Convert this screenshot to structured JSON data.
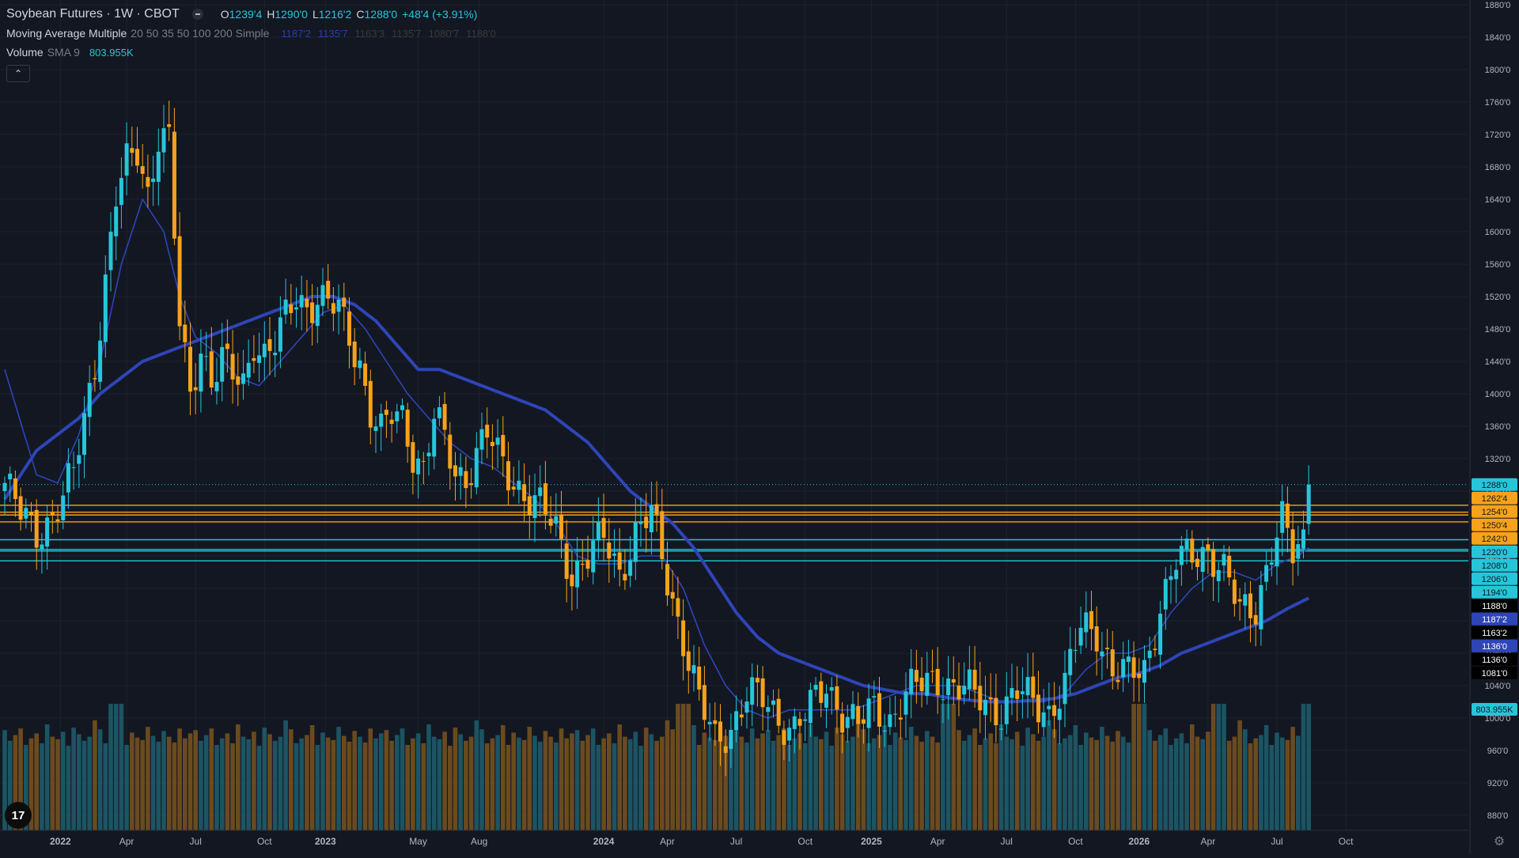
{
  "header": {
    "symbol": "Soybean Futures · 1W · CBOT",
    "ohlc": [
      {
        "k": "O",
        "v": "1239'4"
      },
      {
        "k": "H",
        "v": "1290'0"
      },
      {
        "k": "L",
        "v": "1216'2"
      },
      {
        "k": "C",
        "v": "1288'0"
      }
    ],
    "change": "+48'4 (+3.91%)"
  },
  "indicators": {
    "ma": {
      "name": "Moving Average Multiple",
      "params": "20 50 35 50 100 200 Simple",
      "values": [
        "1187'2",
        "1135'7",
        "1163'3",
        "1135'7",
        "1080'7",
        "1188'0"
      ],
      "value_colors": [
        "#2a3ea8",
        "#2a3ea8",
        "#3a3a3a",
        "#3a3a3a",
        "#3a3a3a",
        "#3a3a3a"
      ]
    },
    "volume": {
      "name": "Volume",
      "params": "SMA 9",
      "value": "803.955K"
    }
  },
  "collapse_icon": "chevron-up-icon",
  "logo_text": "17",
  "settings_icon": "gear-icon",
  "colors": {
    "background": "#131722",
    "grid": "#1e222d",
    "up": "#26c6da",
    "down": "#f7a21b",
    "up_volume": "#1f5f6e",
    "down_volume": "#7a531f",
    "ma_fast": "#2e45b8",
    "ma_slow": "#2e45b8",
    "axis_text": "#b2b5be"
  },
  "chart_data": {
    "type": "candlestick",
    "title": "Soybean Futures · 1W · CBOT",
    "y_axis_ticks": [
      "1880'0",
      "1840'0",
      "1800'0",
      "1760'0",
      "1720'0",
      "1680'0",
      "1640'0",
      "1600'0",
      "1560'0",
      "1520'0",
      "1480'0",
      "1440'0",
      "1400'0",
      "1360'0",
      "1320'0",
      "1280'0",
      "1240'0",
      "1200'0",
      "1160'0",
      "1120'0",
      "1080'0",
      "1040'0",
      "1000'0",
      "960'0",
      "920'0",
      "880'0"
    ],
    "y_range": [
      866,
      1890
    ],
    "x_axis_ticks": [
      "2022",
      "Apr",
      "Jul",
      "Oct",
      "2023",
      "May",
      "Aug",
      "2024",
      "Apr",
      "Jul",
      "Oct",
      "2025",
      "Apr",
      "Jul",
      "Oct",
      "2026",
      "Apr",
      "Jul",
      "Oct"
    ],
    "x_tick_weeks": [
      10.5,
      23,
      36,
      49,
      60.5,
      78,
      89.5,
      113,
      125,
      138,
      151,
      163.5,
      176,
      189,
      202,
      214,
      227,
      240,
      253
    ],
    "total_weeks": 275,
    "last_close": 1288,
    "horizontal_levels": [
      {
        "label": "1262'4",
        "value": 1262.5,
        "color": "#f7a21b"
      },
      {
        "label": "1254'0",
        "value": 1254,
        "color": "#f7a21b"
      },
      {
        "label": "1250'4",
        "value": 1250.5,
        "color": "#f7a21b"
      },
      {
        "label": "1242'0",
        "value": 1242,
        "color": "#f7a21b"
      },
      {
        "label": "1220'0",
        "value": 1220,
        "color": "#26c6da"
      },
      {
        "label": "1208'0",
        "value": 1208,
        "color": "#26c6da"
      },
      {
        "label": "1206'0",
        "value": 1206,
        "color": "#26c6da"
      },
      {
        "label": "1194'0",
        "value": 1194,
        "color": "#26c6da"
      }
    ],
    "price_labels": [
      {
        "label": "1288'0",
        "bg": "#26c6da",
        "fg": "#131722"
      },
      {
        "label": "1262'4",
        "bg": "#f7a21b",
        "fg": "#131722"
      },
      {
        "label": "1254'0",
        "bg": "#f7a21b",
        "fg": "#131722"
      },
      {
        "label": "1250'4",
        "bg": "#f7a21b",
        "fg": "#131722"
      },
      {
        "label": "1242'0",
        "bg": "#f7a21b",
        "fg": "#131722"
      },
      {
        "label": "1220'0",
        "bg": "#26c6da",
        "fg": "#131722"
      },
      {
        "label": "1208'0",
        "bg": "#26c6da",
        "fg": "#131722"
      },
      {
        "label": "1206'0",
        "bg": "#26c6da",
        "fg": "#131722"
      },
      {
        "label": "1194'0",
        "bg": "#26c6da",
        "fg": "#131722"
      },
      {
        "label": "1188'0",
        "bg": "#000000",
        "fg": "#ffffff"
      },
      {
        "label": "1187'2",
        "bg": "#2e45b8",
        "fg": "#ffffff"
      },
      {
        "label": "1163'2",
        "bg": "#000000",
        "fg": "#ffffff"
      },
      {
        "label": "1136'0",
        "bg": "#2e45b8",
        "fg": "#ffffff"
      },
      {
        "label": "1136'0",
        "bg": "#000000",
        "fg": "#ffffff"
      },
      {
        "label": "1081'0",
        "bg": "#000000",
        "fg": "#ffffff"
      },
      {
        "label": "803.955K",
        "bg": "#26c6da",
        "fg": "#131722"
      }
    ],
    "price_anchors": [
      [
        0,
        1290
      ],
      [
        3,
        1250
      ],
      [
        6,
        1230
      ],
      [
        9,
        1250
      ],
      [
        11,
        1270
      ],
      [
        13,
        1300
      ],
      [
        15,
        1370
      ],
      [
        17,
        1440
      ],
      [
        19,
        1540
      ],
      [
        21,
        1640
      ],
      [
        23,
        1680
      ],
      [
        25,
        1700
      ],
      [
        27,
        1650
      ],
      [
        29,
        1720
      ],
      [
        31,
        1710
      ],
      [
        33,
        1480
      ],
      [
        35,
        1400
      ],
      [
        37,
        1460
      ],
      [
        39,
        1420
      ],
      [
        41,
        1440
      ],
      [
        43,
        1420
      ],
      [
        45,
        1410
      ],
      [
        47,
        1470
      ],
      [
        49,
        1450
      ],
      [
        51,
        1460
      ],
      [
        53,
        1490
      ],
      [
        55,
        1520
      ],
      [
        57,
        1510
      ],
      [
        59,
        1520
      ],
      [
        61,
        1510
      ],
      [
        63,
        1500
      ],
      [
        65,
        1470
      ],
      [
        67,
        1440
      ],
      [
        69,
        1380
      ],
      [
        71,
        1350
      ],
      [
        73,
        1370
      ],
      [
        75,
        1370
      ],
      [
        77,
        1330
      ],
      [
        79,
        1310
      ],
      [
        81,
        1370
      ],
      [
        83,
        1340
      ],
      [
        85,
        1300
      ],
      [
        87,
        1300
      ],
      [
        89,
        1330
      ],
      [
        91,
        1350
      ],
      [
        93,
        1320
      ],
      [
        95,
        1300
      ],
      [
        98,
        1280
      ],
      [
        101,
        1260
      ],
      [
        104,
        1230
      ],
      [
        107,
        1180
      ],
      [
        110,
        1200
      ],
      [
        113,
        1220
      ],
      [
        116,
        1180
      ],
      [
        119,
        1230
      ],
      [
        122,
        1250
      ],
      [
        125,
        1170
      ],
      [
        128,
        1100
      ],
      [
        131,
        1020
      ],
      [
        134,
        970
      ],
      [
        137,
        990
      ],
      [
        140,
        1030
      ],
      [
        143,
        1020
      ],
      [
        146,
        1000
      ],
      [
        149,
        990
      ],
      [
        152,
        1010
      ],
      [
        155,
        1040
      ],
      [
        158,
        1010
      ],
      [
        161,
        990
      ],
      [
        164,
        1010
      ],
      [
        167,
        1000
      ],
      [
        170,
        1030
      ],
      [
        173,
        1040
      ],
      [
        176,
        1050
      ],
      [
        179,
        1040
      ],
      [
        182,
        1030
      ],
      [
        185,
        1020
      ],
      [
        188,
        1010
      ],
      [
        191,
        1030
      ],
      [
        194,
        1020
      ],
      [
        197,
        1010
      ],
      [
        200,
        1040
      ],
      [
        203,
        1110
      ],
      [
        206,
        1110
      ],
      [
        209,
        1060
      ],
      [
        212,
        1050
      ],
      [
        215,
        1060
      ],
      [
        218,
        1140
      ],
      [
        221,
        1190
      ],
      [
        224,
        1200
      ],
      [
        227,
        1210
      ],
      [
        230,
        1180
      ],
      [
        233,
        1130
      ],
      [
        236,
        1140
      ],
      [
        239,
        1210
      ],
      [
        241,
        1240
      ],
      [
        243,
        1200
      ],
      [
        245,
        1220
      ],
      [
        246,
        1288
      ]
    ],
    "ma_fast_anchors": [
      [
        0,
        1430
      ],
      [
        6,
        1300
      ],
      [
        10,
        1290
      ],
      [
        14,
        1350
      ],
      [
        18,
        1440
      ],
      [
        22,
        1560
      ],
      [
        26,
        1640
      ],
      [
        30,
        1600
      ],
      [
        33,
        1520
      ],
      [
        36,
        1470
      ],
      [
        40,
        1450
      ],
      [
        44,
        1420
      ],
      [
        48,
        1410
      ],
      [
        52,
        1440
      ],
      [
        56,
        1470
      ],
      [
        60,
        1500
      ],
      [
        64,
        1510
      ],
      [
        68,
        1480
      ],
      [
        72,
        1440
      ],
      [
        76,
        1400
      ],
      [
        80,
        1370
      ],
      [
        84,
        1340
      ],
      [
        88,
        1320
      ],
      [
        92,
        1310
      ],
      [
        96,
        1290
      ],
      [
        100,
        1270
      ],
      [
        104,
        1240
      ],
      [
        108,
        1200
      ],
      [
        112,
        1190
      ],
      [
        116,
        1190
      ],
      [
        120,
        1200
      ],
      [
        124,
        1200
      ],
      [
        128,
        1160
      ],
      [
        132,
        1090
      ],
      [
        136,
        1040
      ],
      [
        140,
        1010
      ],
      [
        144,
        1000
      ],
      [
        148,
        1010
      ],
      [
        152,
        1010
      ],
      [
        156,
        1010
      ],
      [
        160,
        1010
      ],
      [
        164,
        1020
      ],
      [
        168,
        1030
      ],
      [
        172,
        1040
      ],
      [
        176,
        1040
      ],
      [
        180,
        1040
      ],
      [
        184,
        1030
      ],
      [
        188,
        1020
      ],
      [
        192,
        1020
      ],
      [
        196,
        1020
      ],
      [
        200,
        1030
      ],
      [
        204,
        1060
      ],
      [
        208,
        1080
      ],
      [
        212,
        1080
      ],
      [
        216,
        1090
      ],
      [
        220,
        1130
      ],
      [
        224,
        1160
      ],
      [
        228,
        1180
      ],
      [
        232,
        1180
      ],
      [
        236,
        1170
      ],
      [
        240,
        1190
      ],
      [
        244,
        1200
      ],
      [
        246,
        1210
      ]
    ],
    "ma_slow_anchors": [
      [
        0,
        1270
      ],
      [
        6,
        1330
      ],
      [
        10,
        1350
      ],
      [
        14,
        1370
      ],
      [
        18,
        1400
      ],
      [
        22,
        1420
      ],
      [
        26,
        1440
      ],
      [
        30,
        1450
      ],
      [
        34,
        1460
      ],
      [
        38,
        1470
      ],
      [
        42,
        1480
      ],
      [
        46,
        1490
      ],
      [
        50,
        1500
      ],
      [
        54,
        1510
      ],
      [
        58,
        1520
      ],
      [
        62,
        1520
      ],
      [
        66,
        1510
      ],
      [
        70,
        1490
      ],
      [
        74,
        1460
      ],
      [
        78,
        1430
      ],
      [
        82,
        1430
      ],
      [
        86,
        1420
      ],
      [
        90,
        1410
      ],
      [
        94,
        1400
      ],
      [
        98,
        1390
      ],
      [
        102,
        1380
      ],
      [
        106,
        1360
      ],
      [
        110,
        1340
      ],
      [
        114,
        1310
      ],
      [
        118,
        1280
      ],
      [
        122,
        1260
      ],
      [
        126,
        1240
      ],
      [
        130,
        1210
      ],
      [
        134,
        1170
      ],
      [
        138,
        1130
      ],
      [
        142,
        1100
      ],
      [
        146,
        1080
      ],
      [
        150,
        1070
      ],
      [
        154,
        1060
      ],
      [
        158,
        1050
      ],
      [
        162,
        1040
      ],
      [
        166,
        1035
      ],
      [
        170,
        1030
      ],
      [
        174,
        1030
      ],
      [
        178,
        1025
      ],
      [
        182,
        1022
      ],
      [
        186,
        1020
      ],
      [
        190,
        1020
      ],
      [
        194,
        1022
      ],
      [
        198,
        1024
      ],
      [
        202,
        1030
      ],
      [
        206,
        1040
      ],
      [
        210,
        1050
      ],
      [
        214,
        1055
      ],
      [
        218,
        1065
      ],
      [
        222,
        1080
      ],
      [
        226,
        1090
      ],
      [
        230,
        1100
      ],
      [
        234,
        1110
      ],
      [
        238,
        1120
      ],
      [
        242,
        1135
      ],
      [
        246,
        1148
      ]
    ],
    "volume_pattern": [
      0.68,
      0.55,
      0.62,
      0.7,
      0.5,
      0.58,
      0.64,
      0.52,
      0.75,
      0.6,
      0.57,
      0.66,
      0.49,
      0.71,
      0.63,
      0.55,
      0.6,
      0.8,
      0.69,
      0.52,
      0.58,
      0.62,
      0.74,
      0.5,
      0.65,
      0.59,
      0.56,
      0.72,
      0.61,
      0.54,
      0.67,
      0.6,
      0.53,
      0.7,
      0.58,
      0.64
    ],
    "volume_peak_weeks": [
      21,
      128,
      178,
      214,
      229,
      246
    ],
    "volume_range_fraction": [
      0.35,
      1.0
    ]
  }
}
